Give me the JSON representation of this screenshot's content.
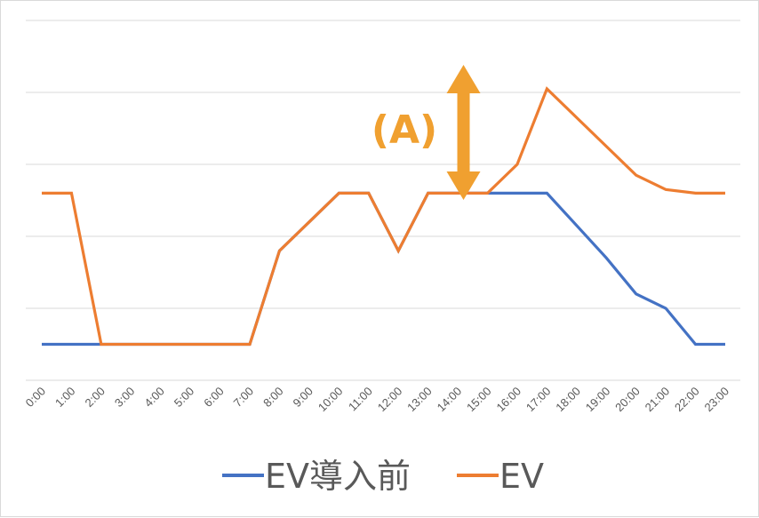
{
  "chart_data": {
    "type": "line",
    "categories": [
      "0:00",
      "1:00",
      "2:00",
      "3:00",
      "4:00",
      "5:00",
      "6:00",
      "7:00",
      "8:00",
      "9:00",
      "10:00",
      "11:00",
      "12:00",
      "13:00",
      "14:00",
      "15:00",
      "16:00",
      "17:00",
      "18:00",
      "19:00",
      "20:00",
      "21:00",
      "22:00",
      "23:00"
    ],
    "series": [
      {
        "name": "EV導入前",
        "color": "#4472C4",
        "values": [
          1,
          1,
          1,
          1,
          1,
          1,
          1,
          1,
          3.6,
          4.4,
          5.2,
          5.2,
          3.6,
          5.2,
          5.2,
          5.2,
          5.2,
          5.2,
          4.3,
          3.4,
          2.4,
          2.0,
          1,
          1
        ]
      },
      {
        "name": "EV",
        "color": "#ED7D31",
        "values": [
          5.2,
          5.2,
          1,
          1,
          1,
          1,
          1,
          1,
          3.6,
          4.4,
          5.2,
          5.2,
          3.6,
          5.2,
          5.2,
          5.2,
          6.0,
          8.1,
          7.3,
          6.5,
          5.7,
          5.3,
          5.2,
          5.2
        ]
      }
    ],
    "ylim": [
      0,
      10
    ],
    "grid": true,
    "legend": "bottom",
    "annotation": {
      "label": "(A)",
      "color": "#F0A030",
      "at_category": "15:00",
      "from": 5.2,
      "to": 8.4
    }
  }
}
